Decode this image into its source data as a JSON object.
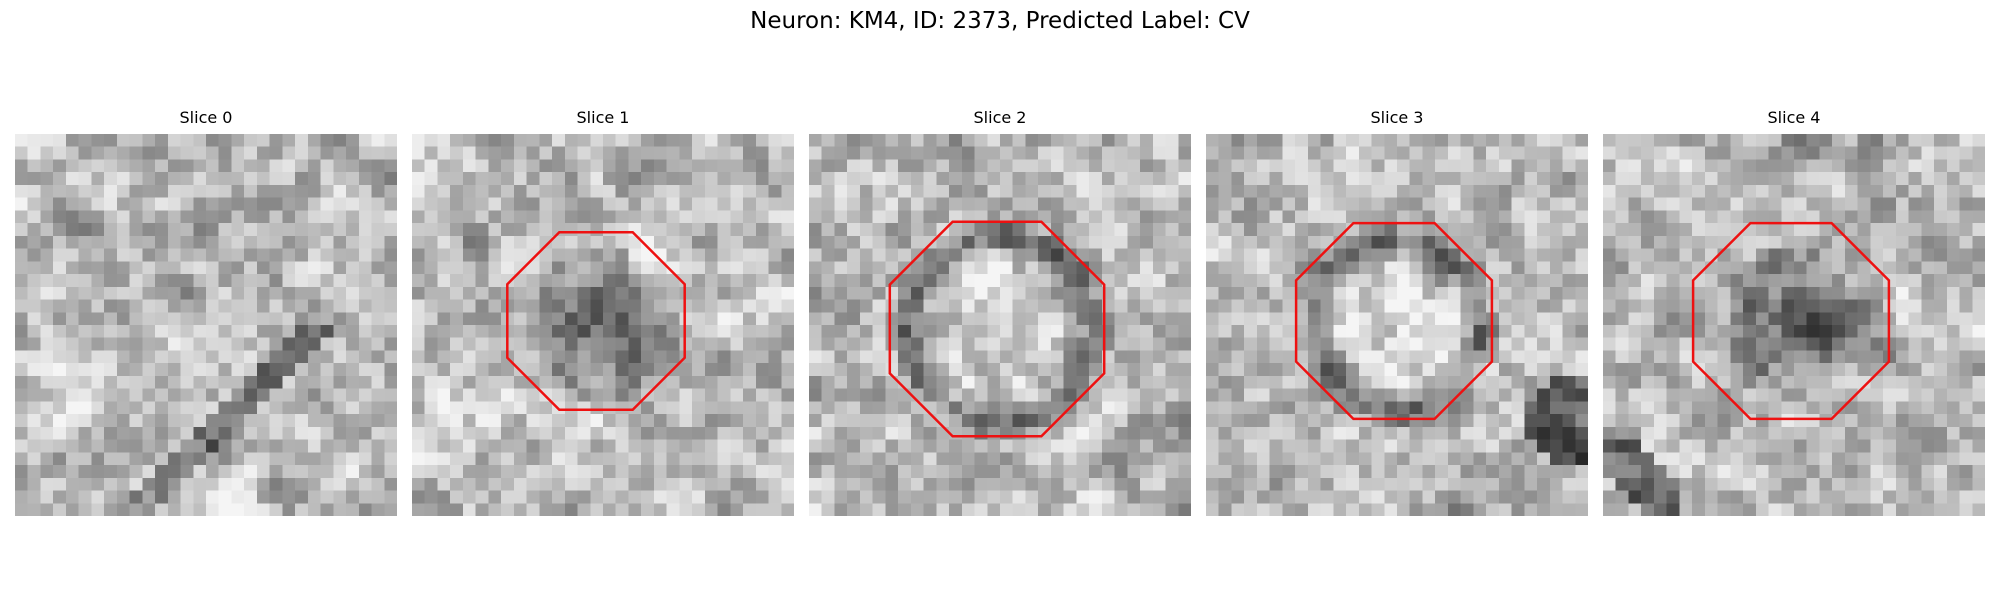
{
  "figure": {
    "title": "Neuron: KM4, ID: 2373, Predicted Label: CV"
  },
  "colors": {
    "outline": "#ee1111",
    "background": "#ffffff"
  },
  "slices": [
    {
      "label": "Slice 0",
      "roi_shown": false,
      "appearance": "texture-only"
    },
    {
      "label": "Slice 1",
      "roi_shown": true,
      "appearance": "dark-blob"
    },
    {
      "label": "Slice 2",
      "roi_shown": true,
      "appearance": "ring-bright-center"
    },
    {
      "label": "Slice 3",
      "roi_shown": true,
      "appearance": "ring-bright-center"
    },
    {
      "label": "Slice 4",
      "roi_shown": true,
      "appearance": "dark-blob"
    }
  ]
}
